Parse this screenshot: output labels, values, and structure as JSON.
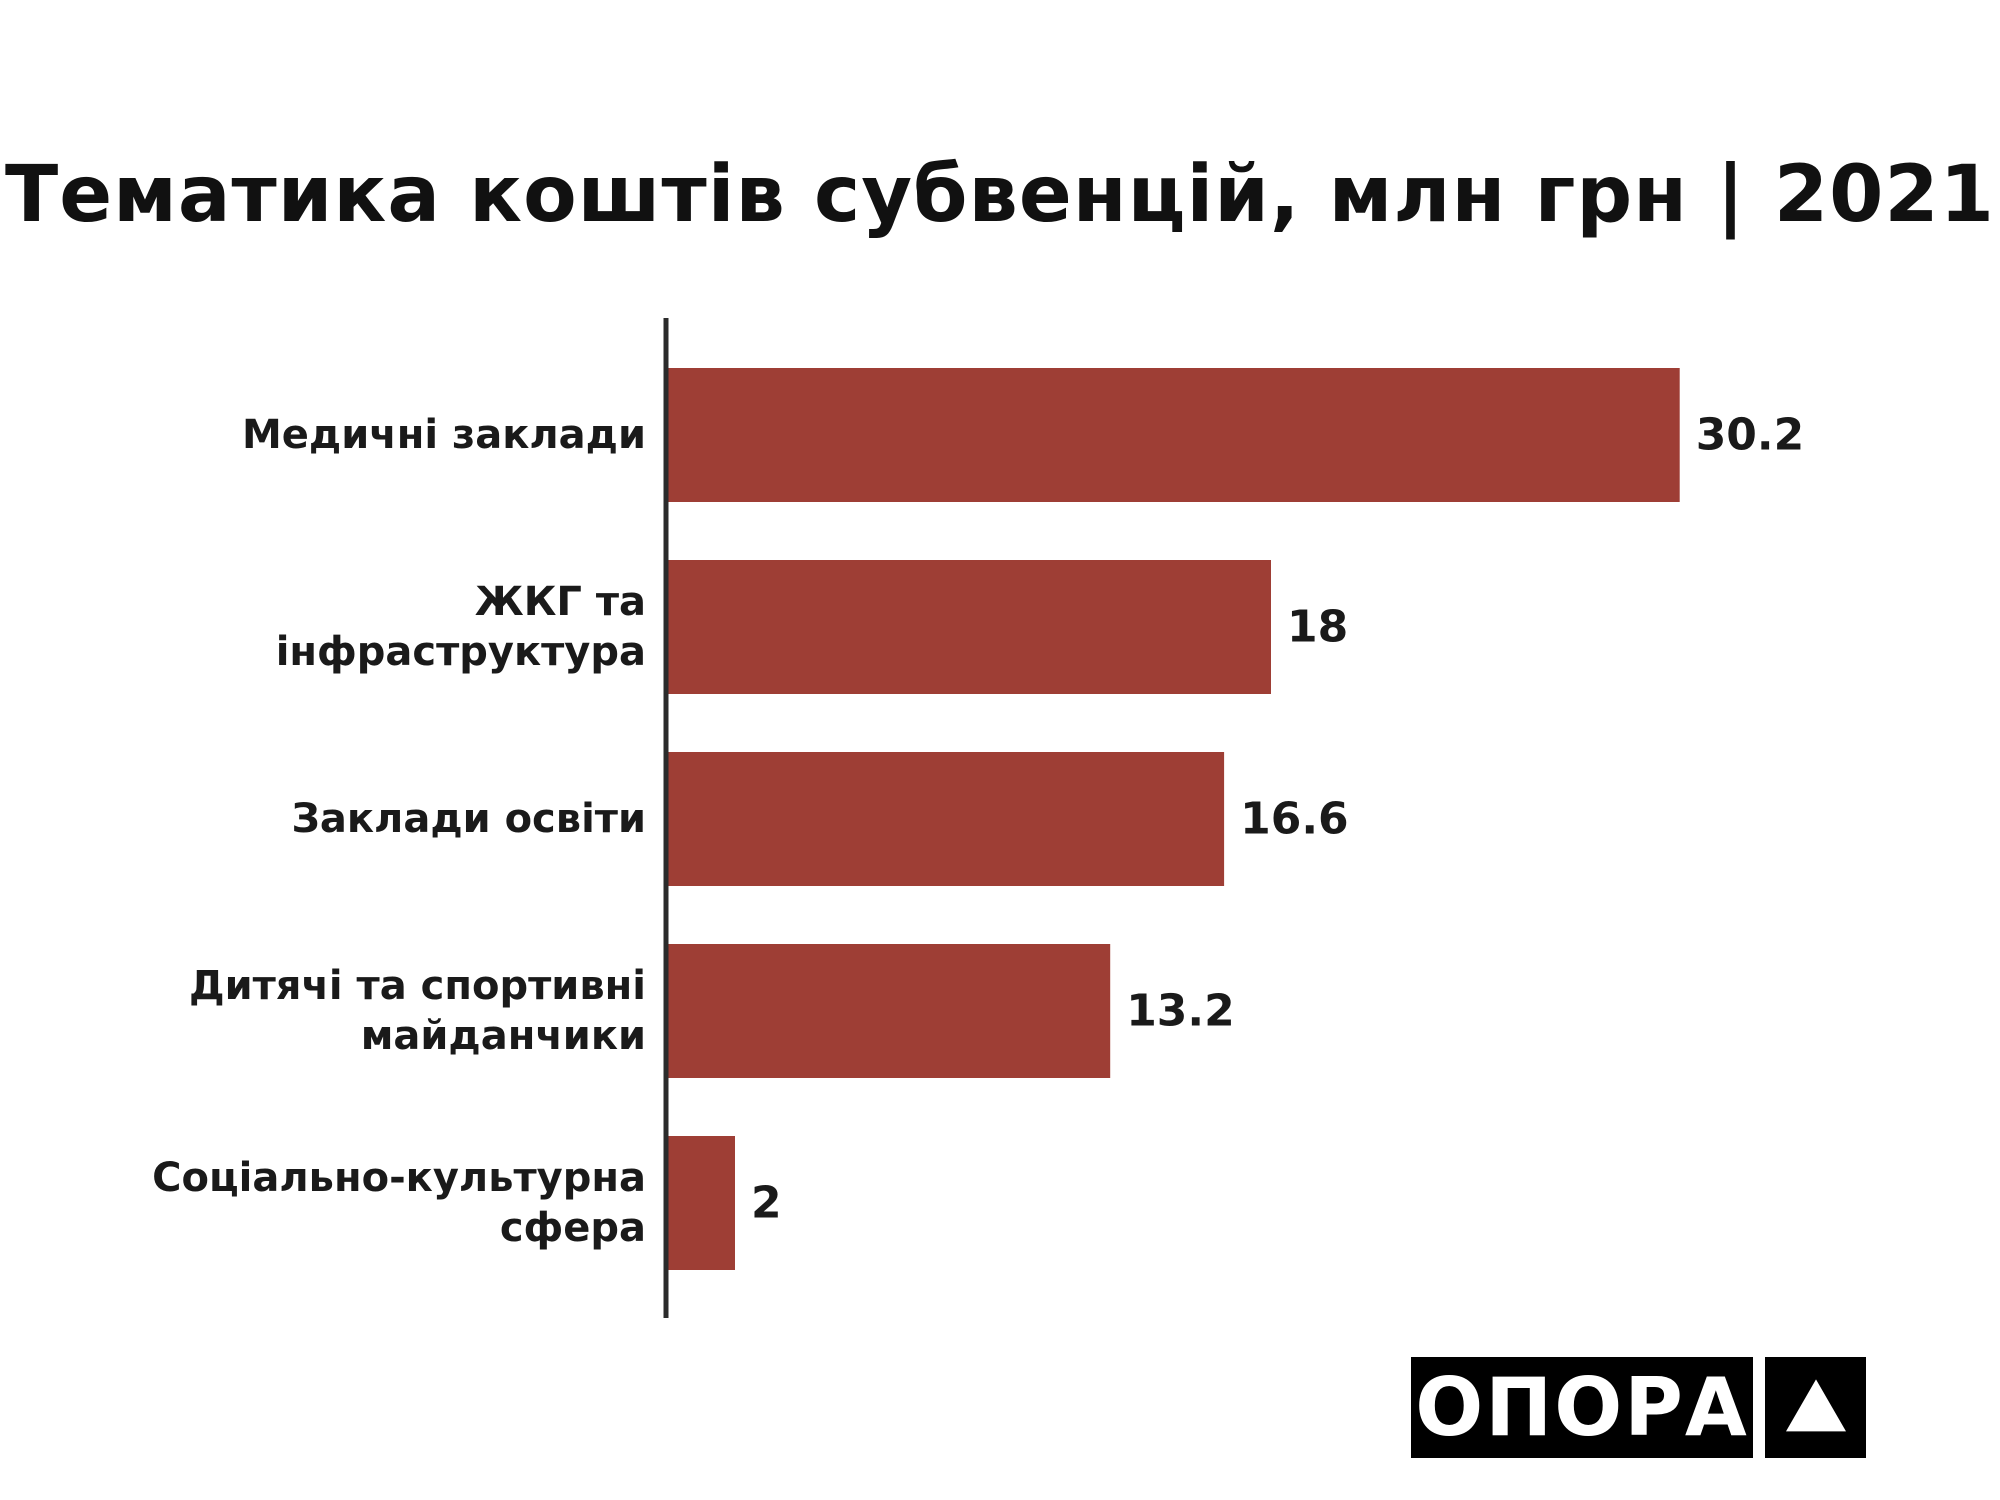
{
  "chart_data": {
    "type": "bar",
    "orientation": "horizontal",
    "title": "Тематика коштів субвенцій, млн грн | 2021",
    "categories": [
      [
        "Медичні заклади"
      ],
      [
        "ЖКГ та",
        "інфраструктура"
      ],
      [
        "Заклади освіти"
      ],
      [
        "Дитячі та спортивні",
        "майданчики"
      ],
      [
        "Соціально-культурна",
        "сфера"
      ]
    ],
    "values": [
      30.2,
      18,
      16.6,
      13.2,
      2
    ],
    "value_labels": [
      "30.2",
      "18",
      "16.6",
      "13.2",
      "2"
    ],
    "bar_color": "#9e3e35",
    "axis_color": "#2b2b2b",
    "grid": false,
    "legend": "none"
  },
  "logo": {
    "text": "ОПОРА",
    "mark_icon": "triangle-icon"
  }
}
